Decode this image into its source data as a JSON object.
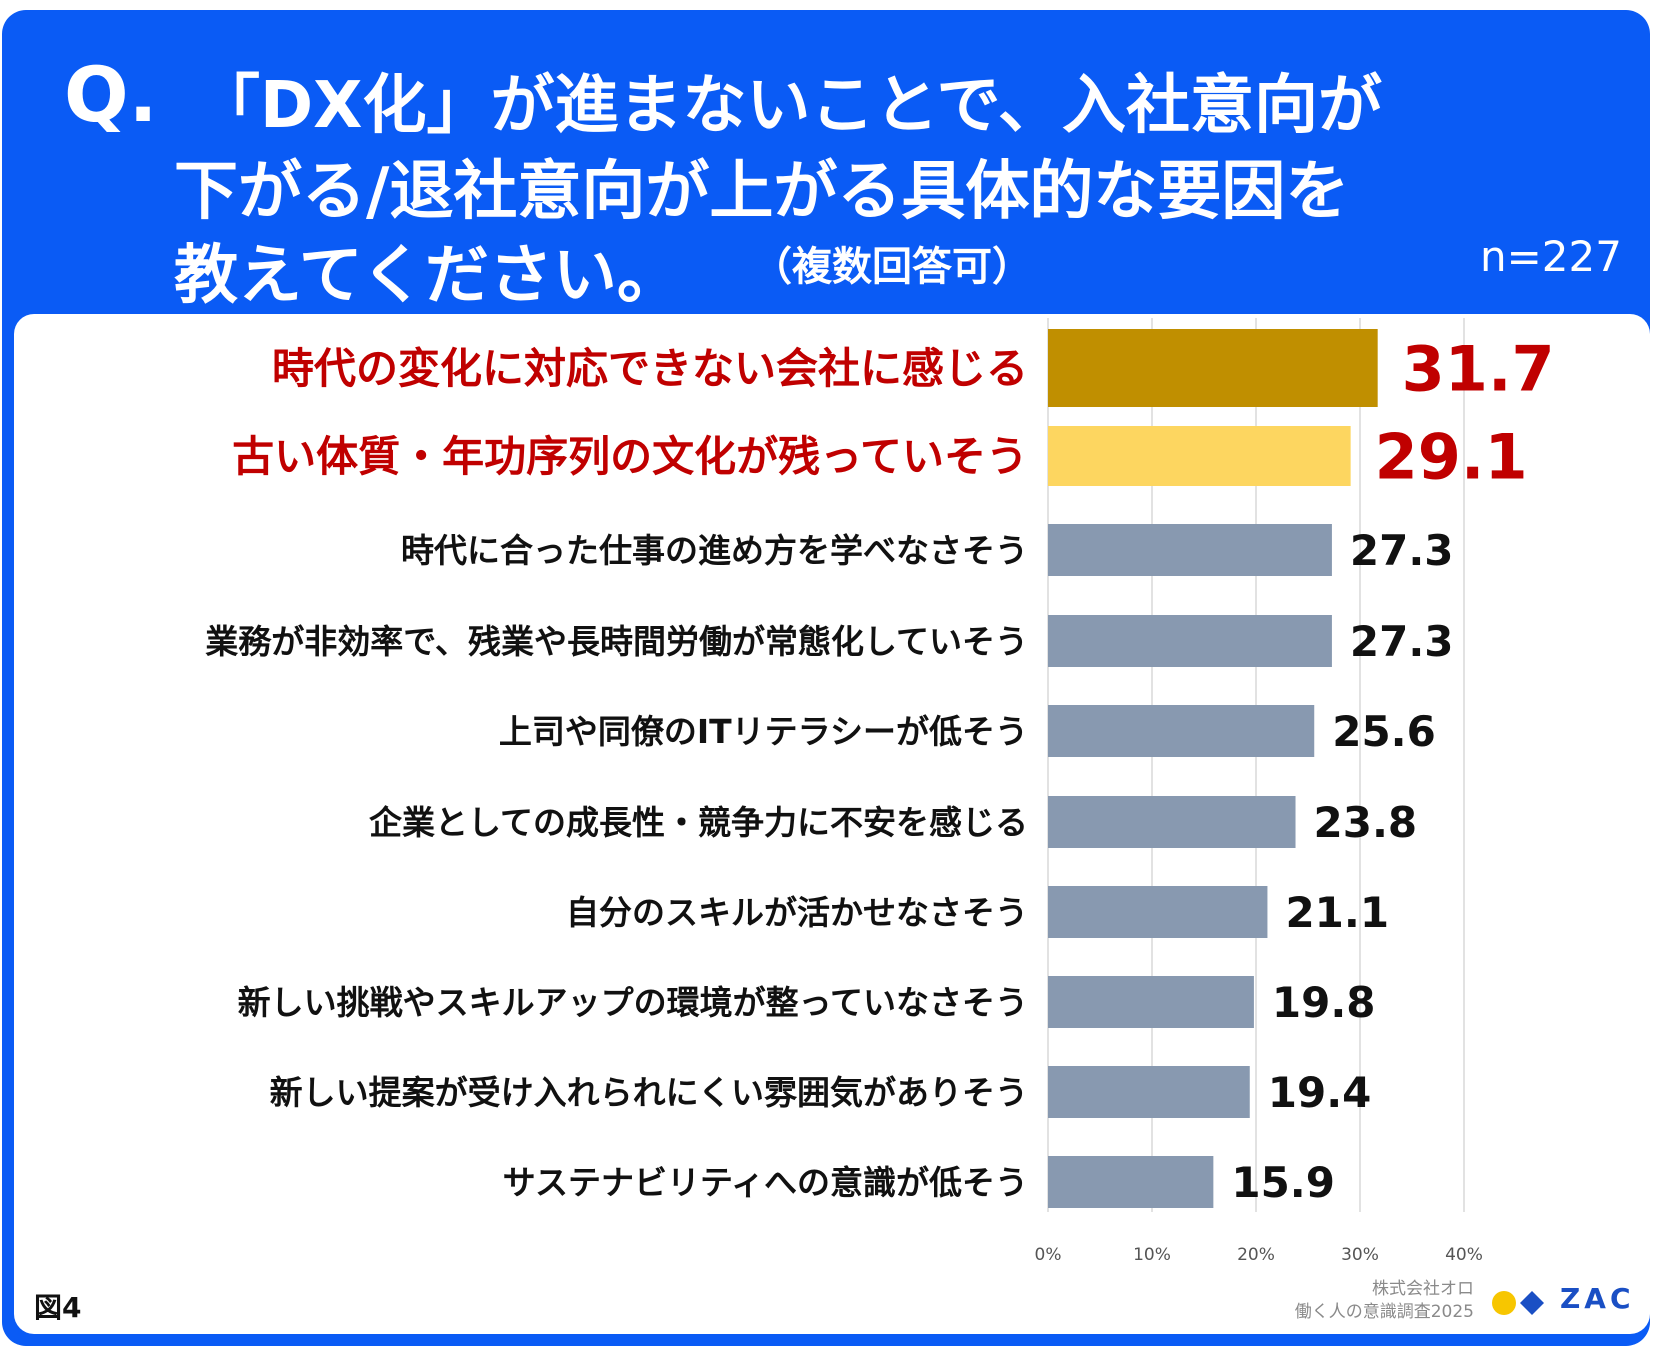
{
  "question": {
    "q_mark": "Q.",
    "line1": "「DX化」が進まないことで、入社意向が",
    "line2": "下がる/退社意向が上がる具体的な要因を",
    "line3": "教えてください。",
    "note": "（複数回答可）",
    "n": "n=227"
  },
  "chart_data": {
    "type": "bar",
    "orientation": "horizontal",
    "categories": [
      "時代の変化に対応できない会社に感じる",
      "古い体質・年功序列の文化が残っていそう",
      "時代に合った仕事の進め方を学べなさそう",
      "業務が非効率で、残業や長時間労働が常態化していそう",
      "上司や同僚のITリテラシーが低そう",
      "企業としての成長性・競争力に不安を感じる",
      "自分のスキルが活かせなさそう",
      "新しい挑戦やスキルアップの環境が整っていなさそう",
      "新しい提案が受け入れられにくい雰囲気がありそう",
      "サステナビリティへの意識が低そう"
    ],
    "values": [
      31.7,
      29.1,
      27.3,
      27.3,
      25.6,
      23.8,
      21.1,
      19.8,
      19.4,
      15.9
    ],
    "value_labels": [
      "31.7",
      "29.1",
      "27.3",
      "27.3",
      "25.6",
      "23.8",
      "21.1",
      "19.8",
      "19.4",
      "15.9"
    ],
    "xlim": [
      0,
      40
    ],
    "ticks": [
      "0%",
      "10%",
      "20%",
      "30%",
      "40%"
    ],
    "tick_values": [
      0,
      10,
      20,
      30,
      40
    ],
    "grid": true,
    "colors": {
      "bar_1": "#c08f00",
      "bar_2": "#fdd660",
      "bar_other": "#8899b0",
      "highlight_text": "#c00000",
      "normal_text": "#111111",
      "gridline": "#d9d9d9"
    }
  },
  "footer": {
    "figure_label": "図4",
    "company": "株式会社オロ",
    "survey": "働く人の意識調査2025",
    "logo_text": "ZAC"
  },
  "colors": {
    "background": "#0a5bf5",
    "panel": "#ffffff",
    "logo_yellow": "#f7c600",
    "logo_blue": "#1a4fc4"
  }
}
